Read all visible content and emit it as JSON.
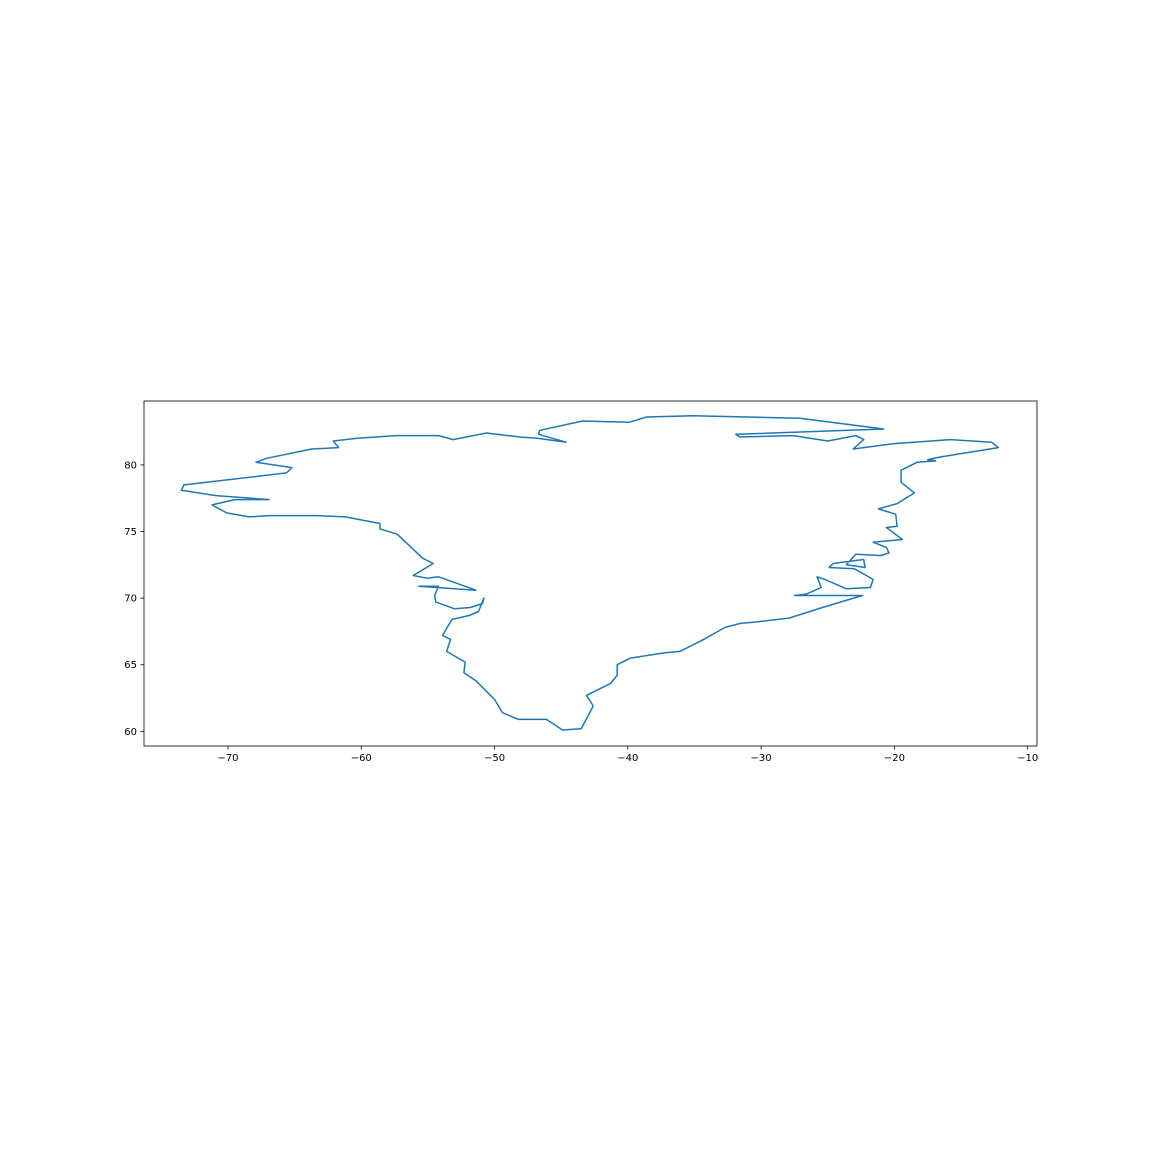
{
  "chart_data": {
    "type": "line",
    "title": "",
    "xlabel": "",
    "ylabel": "",
    "xlim": [
      -76.3,
      -9.3
    ],
    "ylim": [
      58.9,
      84.8
    ],
    "xticks": [
      -70,
      -60,
      -50,
      -40,
      -30,
      -20,
      -10
    ],
    "xtick_labels": [
      "−70",
      "−60",
      "−50",
      "−40",
      "−30",
      "−20",
      "−10"
    ],
    "yticks": [
      60,
      65,
      70,
      75,
      80
    ],
    "ytick_labels": [
      "60",
      "65",
      "70",
      "75",
      "80"
    ],
    "grid": false,
    "legend": "none",
    "series": [
      {
        "color": "#1f77b4",
        "x": [
          -44.6,
          -46.7,
          -46.6,
          -43.4,
          -39.9,
          -38.6,
          -35.1,
          -27.1,
          -20.8,
          -31.9,
          -31.6,
          -27.6,
          -25.0,
          -22.9,
          -22.3,
          -23.1,
          -20.0,
          -15.8,
          -12.7,
          -12.2,
          -16.5,
          -17.5,
          -16.9,
          -18.3,
          -19.5,
          -19.5,
          -18.5,
          -19.8,
          -21.2,
          -19.9,
          -19.8,
          -20.6,
          -19.4,
          -21.6,
          -20.6,
          -20.4,
          -21.0,
          -22.9,
          -23.6,
          -22.2,
          -22.3,
          -24.6,
          -24.9,
          -23.0,
          -22.1,
          -21.6,
          -21.8,
          -23.6,
          -25.2,
          -25.8,
          -25.5,
          -26.6,
          -27.5,
          -22.4,
          -25.4,
          -27.9,
          -30.5,
          -31.6,
          -32.7,
          -34.5,
          -36.1,
          -37.2,
          -39.8,
          -40.8,
          -40.8,
          -41.3,
          -43.1,
          -42.6,
          -43.5,
          -44.9,
          -46.1,
          -48.2,
          -49.4,
          -50.0,
          -51.4,
          -52.3,
          -52.2,
          -53.6,
          -53.3,
          -53.9,
          -53.2,
          -51.9,
          -51.2,
          -50.8,
          -50.9,
          -51.8,
          -53.0,
          -54.4,
          -54.5,
          -54.2,
          -55.7,
          -51.4,
          -54.2,
          -55.1,
          -56.1,
          -54.6,
          -55.4,
          -57.3,
          -58.6,
          -58.6,
          -61.2,
          -63.3,
          -66.9,
          -68.4,
          -70.1,
          -71.2,
          -69.5,
          -66.9,
          -70.9,
          -73.5,
          -73.3,
          -65.6,
          -65.2,
          -67.9,
          -67.1,
          -63.7,
          -61.7,
          -62.1,
          -60.3,
          -57.4,
          -54.2,
          -53.1,
          -50.6,
          -48.1,
          -46.8,
          -44.6
        ]
      }
    ],
    "y_values_all": [
      81.7,
      82.3,
      82.6,
      83.3,
      83.2,
      83.6,
      83.7,
      83.5,
      82.7,
      82.3,
      82.1,
      82.2,
      81.8,
      82.2,
      81.9,
      81.2,
      81.6,
      81.9,
      81.7,
      81.3,
      80.6,
      80.4,
      80.3,
      80.2,
      79.6,
      78.7,
      77.9,
      77.1,
      76.7,
      76.3,
      75.4,
      75.3,
      74.4,
      74.2,
      73.8,
      73.4,
      73.2,
      73.3,
      72.5,
      72.3,
      72.9,
      72.6,
      72.3,
      72.2,
      71.7,
      71.4,
      70.8,
      70.7,
      71.4,
      71.6,
      70.8,
      70.3,
      70.2,
      70.2,
      69.3,
      68.5,
      68.2,
      68.1,
      67.8,
      66.8,
      66.0,
      65.9,
      65.5,
      65.0,
      64.2,
      63.6,
      62.7,
      61.9,
      60.2,
      60.1,
      60.9,
      60.9,
      61.4,
      62.4,
      63.8,
      64.4,
      65.2,
      66.0,
      66.9,
      67.2,
      68.4,
      68.7,
      69.0,
      70.0,
      69.6,
      69.3,
      69.2,
      69.7,
      70.2,
      70.9,
      70.9,
      70.6,
      71.6,
      71.5,
      71.7,
      72.6,
      73.0,
      74.8,
      75.2,
      75.6,
      76.1,
      76.2,
      76.2,
      76.1,
      76.4,
      77.0,
      77.4,
      77.4,
      77.7,
      78.1,
      78.5,
      79.4,
      79.8,
      80.2,
      80.5,
      81.2,
      81.3,
      81.8,
      82.0,
      82.2,
      82.2,
      81.9,
      82.4,
      82.1,
      82.0,
      81.7
    ]
  }
}
